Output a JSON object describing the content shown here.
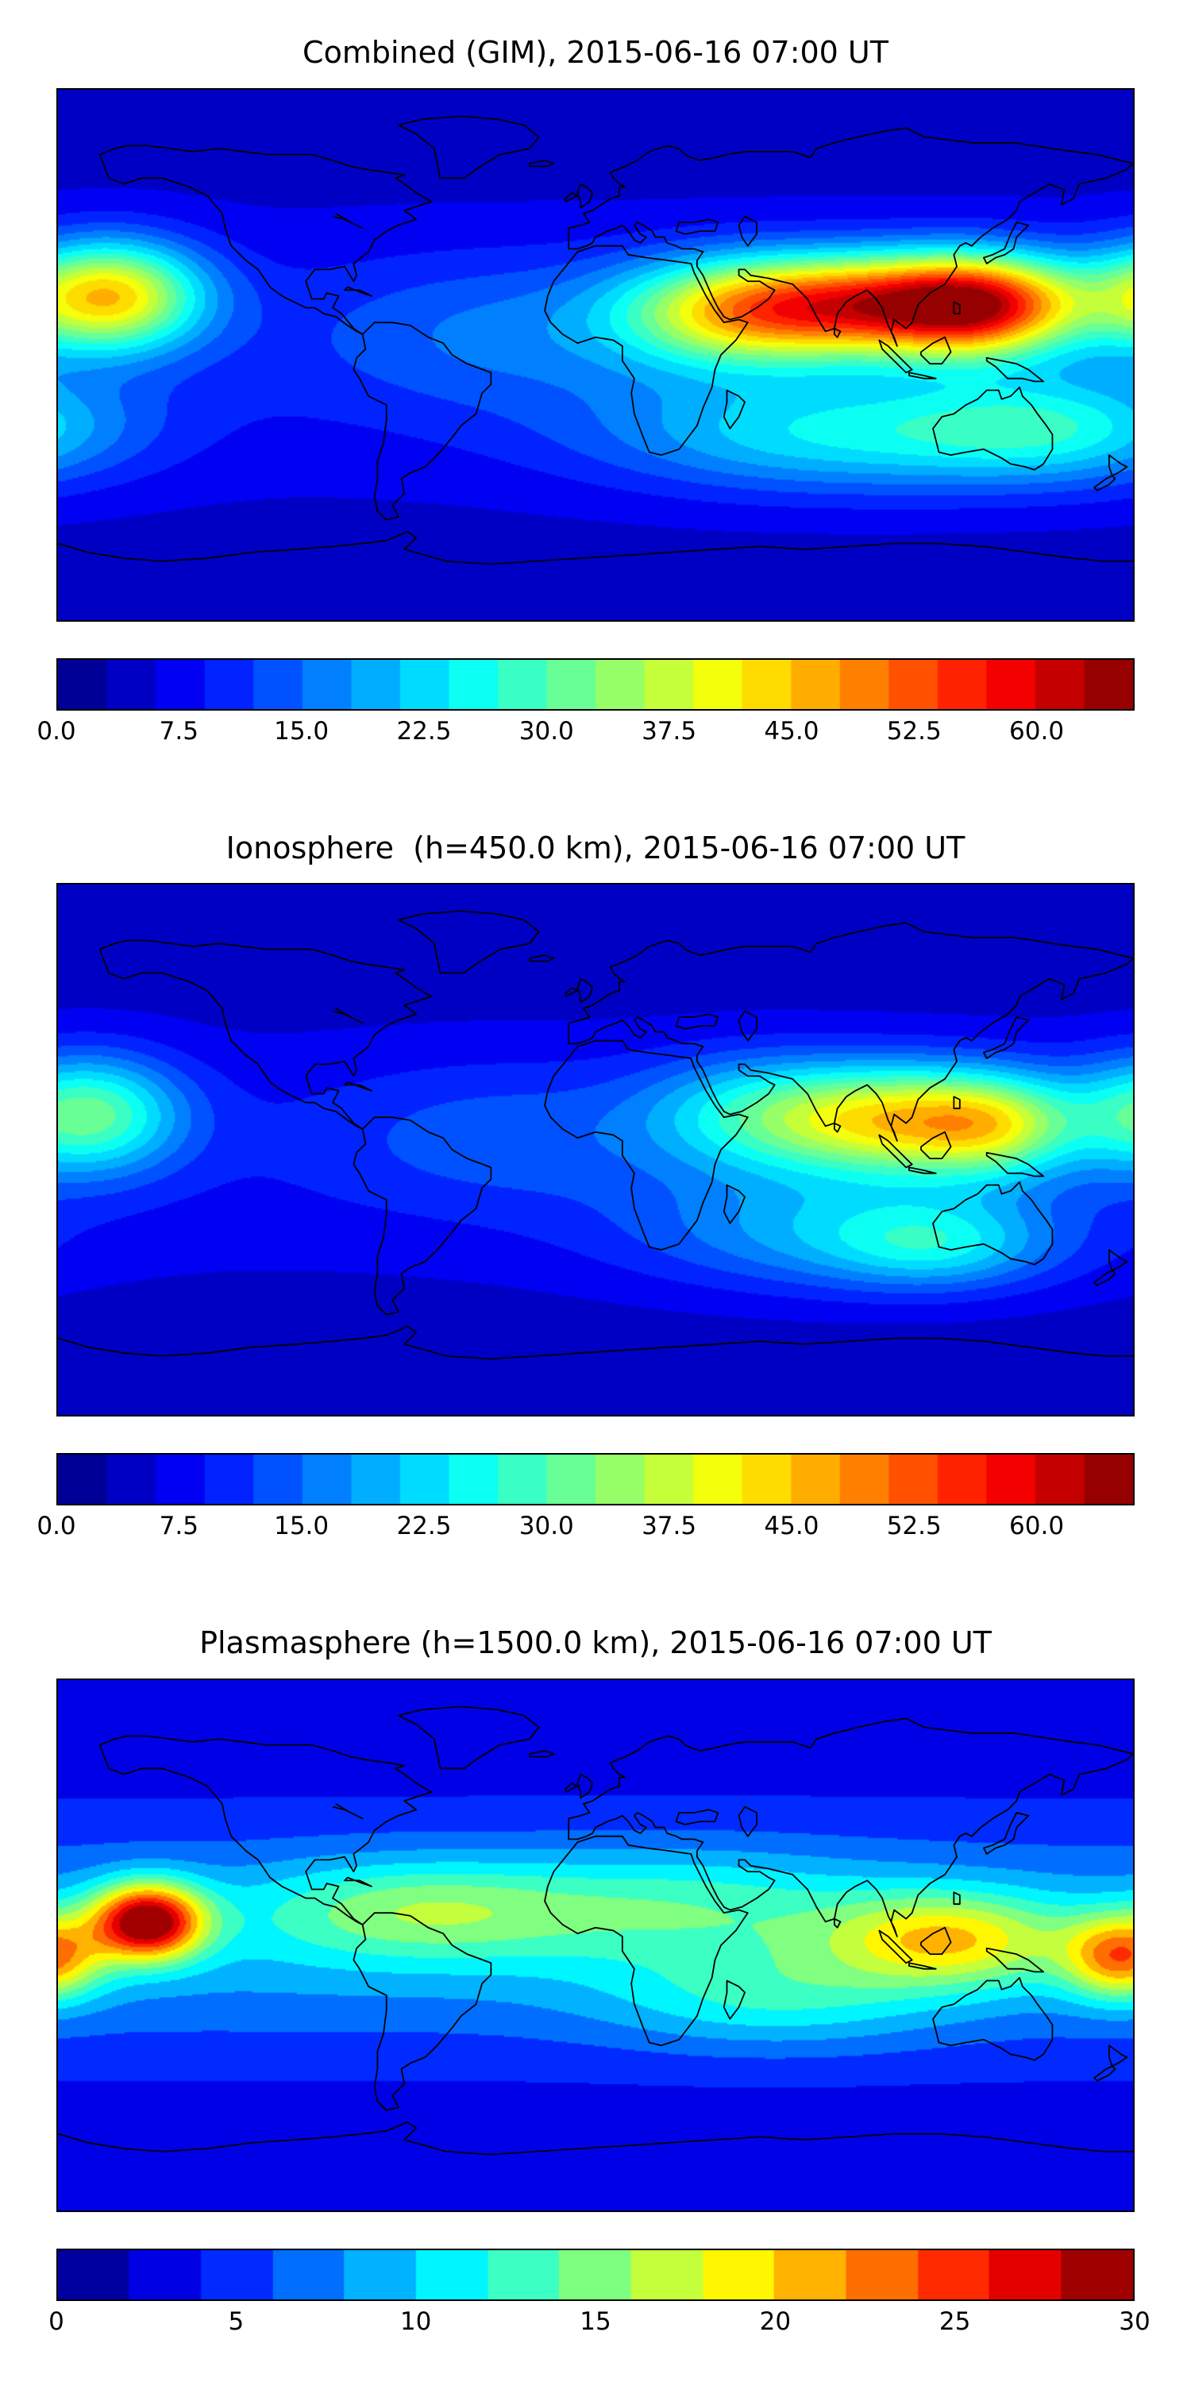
{
  "figure": {
    "background": "#ffffff",
    "description": "Three stacked global TEC maps (equirectangular world projection with black coastlines) with discrete jet-colormap filled contours and horizontal colorbars below each map."
  },
  "chart_data": [
    {
      "type": "heatmap",
      "title": "Combined (GIM), 2015-06-16 07:00 UT",
      "layer": "combined-gim",
      "timestamp": "2015-06-16 07:00 UT",
      "projection": "equirectangular",
      "lon_range": [
        -180,
        180
      ],
      "lat_range": [
        -90,
        90
      ],
      "colormap": "jet",
      "grid": false,
      "colorbar": {
        "orientation": "horizontal",
        "vmin": 0,
        "vmax": 66,
        "level_step": 3,
        "n_levels": 22,
        "ticks": [
          "0.0",
          "7.5",
          "15.0",
          "22.5",
          "30.0",
          "37.5",
          "45.0",
          "52.5",
          "60.0"
        ],
        "tick_values": [
          0,
          7.5,
          15,
          22.5,
          30,
          37.5,
          45,
          52.5,
          60
        ]
      },
      "field": {
        "base": {
          "offset": 4,
          "amp": 5,
          "lat0": 0,
          "sigma": 35
        },
        "hotspots": [
          {
            "lon": 95,
            "lat": 17,
            "amp": 44,
            "slon": 38,
            "slat": 12
          },
          {
            "lon": 130,
            "lat": 17,
            "amp": 30,
            "slon": 22,
            "slat": 12
          },
          {
            "lon": 45,
            "lat": 14,
            "amp": 22,
            "slon": 28,
            "slat": 13
          },
          {
            "lon": -163,
            "lat": 20,
            "amp": 36,
            "slon": 22,
            "slat": 13
          },
          {
            "lon": 80,
            "lat": -27,
            "amp": 16,
            "slon": 55,
            "slat": 14
          },
          {
            "lon": 155,
            "lat": -25,
            "amp": 14,
            "slon": 35,
            "slat": 13
          },
          {
            "lon": -30,
            "lat": 8,
            "amp": 7,
            "slon": 45,
            "slat": 18
          }
        ]
      }
    },
    {
      "type": "heatmap",
      "title": "Ionosphere  (h=450.0 km), 2015-06-16 07:00 UT",
      "layer": "ionosphere",
      "altitude_km": 450.0,
      "timestamp": "2015-06-16 07:00 UT",
      "projection": "equirectangular",
      "lon_range": [
        -180,
        180
      ],
      "lat_range": [
        -90,
        90
      ],
      "colormap": "jet",
      "grid": false,
      "colorbar": {
        "orientation": "horizontal",
        "vmin": 0,
        "vmax": 66,
        "level_step": 3,
        "n_levels": 22,
        "ticks": [
          "0.0",
          "7.5",
          "15.0",
          "22.5",
          "30.0",
          "37.5",
          "45.0",
          "52.5",
          "60.0"
        ],
        "tick_values": [
          0,
          7.5,
          15,
          22.5,
          30,
          37.5,
          45,
          52.5,
          60
        ]
      },
      "field": {
        "base": {
          "offset": 3.5,
          "amp": 4.5,
          "lat0": -2,
          "sigma": 35
        },
        "hotspots": [
          {
            "lon": 105,
            "lat": 10,
            "amp": 32,
            "slon": 30,
            "slat": 13
          },
          {
            "lon": 135,
            "lat": 8,
            "amp": 16,
            "slon": 18,
            "slat": 12
          },
          {
            "lon": 55,
            "lat": 12,
            "amp": 16,
            "slon": 28,
            "slat": 14
          },
          {
            "lon": -170,
            "lat": 12,
            "amp": 24,
            "slon": 22,
            "slat": 14
          },
          {
            "lon": 85,
            "lat": -28,
            "amp": 13,
            "slon": 50,
            "slat": 14
          },
          {
            "lon": 115,
            "lat": -33,
            "amp": 10,
            "slon": 25,
            "slat": 10
          },
          {
            "lon": -30,
            "lat": 5,
            "amp": 6,
            "slon": 45,
            "slat": 18
          }
        ]
      }
    },
    {
      "type": "heatmap",
      "title": "Plasmasphere (h=1500.0 km), 2015-06-16 07:00 UT",
      "layer": "plasmasphere",
      "altitude_km": 1500.0,
      "timestamp": "2015-06-16 07:00 UT",
      "projection": "equirectangular",
      "lon_range": [
        -180,
        180
      ],
      "lat_range": [
        -90,
        90
      ],
      "colormap": "jet",
      "grid": false,
      "colorbar": {
        "orientation": "horizontal",
        "vmin": 0,
        "vmax": 30,
        "level_step": 2,
        "n_levels": 15,
        "ticks": [
          "0",
          "5",
          "10",
          "15",
          "20",
          "25",
          "30"
        ],
        "tick_values": [
          0,
          5,
          10,
          15,
          20,
          25,
          30
        ]
      },
      "field": {
        "base": {
          "offset": 2.5,
          "amp": 6.5,
          "lat0": 2,
          "sigma": 28
        },
        "hotspots": [
          {
            "lon": -150,
            "lat": 8,
            "amp": 23,
            "slon": 13,
            "slat": 9
          },
          {
            "lon": 118,
            "lat": 2,
            "amp": 11,
            "slon": 28,
            "slat": 11
          },
          {
            "lon": 176,
            "lat": -4,
            "amp": 14,
            "slon": 13,
            "slat": 10
          },
          {
            "lon": -60,
            "lat": 12,
            "amp": 7,
            "slon": 38,
            "slat": 12
          },
          {
            "lon": 30,
            "lat": 14,
            "amp": 5,
            "slon": 45,
            "slat": 13
          },
          {
            "lon": 60,
            "lat": -18,
            "amp": 5,
            "slon": 40,
            "slat": 12
          }
        ]
      }
    }
  ]
}
